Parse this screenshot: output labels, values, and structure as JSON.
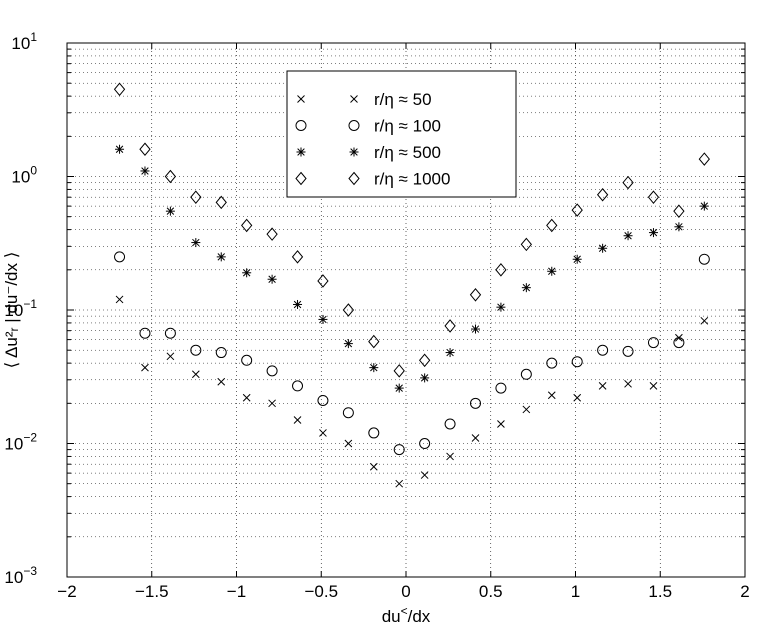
{
  "chart_data": {
    "type": "scatter",
    "x_scale": "linear",
    "y_scale": "log",
    "xlim": [
      -2,
      2
    ],
    "ylim": [
      0.001,
      10
    ],
    "xticks": [
      -2,
      -1.5,
      -1,
      -0.5,
      0,
      0.5,
      1,
      1.5,
      2
    ],
    "xtick_labels": [
      "−2",
      "−1.5",
      "−1",
      "−0.5",
      "0",
      "0.5",
      "1",
      "1.5",
      "2"
    ],
    "ytick_exponents": [
      "−3",
      "−2",
      "−1",
      "0",
      "1"
    ],
    "ytick_base": "10",
    "xlabel": "du",
    "xlabel_sup": "<",
    "xlabel_rest": "/dx",
    "ylabel": "⟨ Δu²ᵣ | du⁻/dx ⟩",
    "grid": true,
    "legend_position": "top-center",
    "series": [
      {
        "name": "r/η ≈ 50",
        "marker": "x",
        "x": [
          -1.69,
          -1.54,
          -1.39,
          -1.24,
          -1.09,
          -0.94,
          -0.79,
          -0.64,
          -0.49,
          -0.34,
          -0.19,
          -0.04,
          0.11,
          0.26,
          0.41,
          0.56,
          0.71,
          0.86,
          1.01,
          1.16,
          1.31,
          1.46,
          1.61,
          1.76
        ],
        "y": [
          0.12,
          0.037,
          0.045,
          0.033,
          0.029,
          0.022,
          0.02,
          0.015,
          0.012,
          0.01,
          0.0067,
          0.005,
          0.0058,
          0.008,
          0.011,
          0.014,
          0.018,
          0.023,
          0.022,
          0.027,
          0.028,
          0.027,
          0.062,
          0.083
        ]
      },
      {
        "name": "r/η ≈ 100",
        "marker": "circle",
        "x": [
          -1.69,
          -1.54,
          -1.39,
          -1.24,
          -1.09,
          -0.94,
          -0.79,
          -0.64,
          -0.49,
          -0.34,
          -0.19,
          -0.04,
          0.11,
          0.26,
          0.41,
          0.56,
          0.71,
          0.86,
          1.01,
          1.16,
          1.31,
          1.46,
          1.61,
          1.76
        ],
        "y": [
          0.25,
          0.067,
          0.067,
          0.05,
          0.048,
          0.042,
          0.035,
          0.027,
          0.021,
          0.017,
          0.012,
          0.009,
          0.01,
          0.014,
          0.02,
          0.026,
          0.033,
          0.04,
          0.041,
          0.05,
          0.049,
          0.057,
          0.057,
          0.24
        ]
      },
      {
        "name": "r/η ≈ 500",
        "marker": "star",
        "x": [
          -1.69,
          -1.54,
          -1.39,
          -1.24,
          -1.09,
          -0.94,
          -0.79,
          -0.64,
          -0.49,
          -0.34,
          -0.19,
          -0.04,
          0.11,
          0.26,
          0.41,
          0.56,
          0.71,
          0.86,
          1.01,
          1.16,
          1.31,
          1.46,
          1.61,
          1.76
        ],
        "y": [
          1.6,
          1.1,
          0.55,
          0.32,
          0.25,
          0.19,
          0.17,
          0.11,
          0.085,
          0.056,
          0.037,
          0.026,
          0.031,
          0.048,
          0.072,
          0.105,
          0.147,
          0.195,
          0.24,
          0.29,
          0.36,
          0.38,
          0.42,
          0.6
        ]
      },
      {
        "name": "r/η ≈ 1000",
        "marker": "diamond",
        "x": [
          -1.69,
          -1.54,
          -1.39,
          -1.24,
          -1.09,
          -0.94,
          -0.79,
          -0.64,
          -0.49,
          -0.34,
          -0.19,
          -0.04,
          0.11,
          0.26,
          0.41,
          0.56,
          0.71,
          0.86,
          1.01,
          1.16,
          1.31,
          1.46,
          1.61,
          1.76
        ],
        "y": [
          4.5,
          1.6,
          1.0,
          0.7,
          0.64,
          0.43,
          0.37,
          0.25,
          0.165,
          0.1,
          0.058,
          0.035,
          0.042,
          0.076,
          0.13,
          0.2,
          0.31,
          0.43,
          0.56,
          0.73,
          0.9,
          0.7,
          0.55,
          1.35
        ]
      }
    ]
  }
}
